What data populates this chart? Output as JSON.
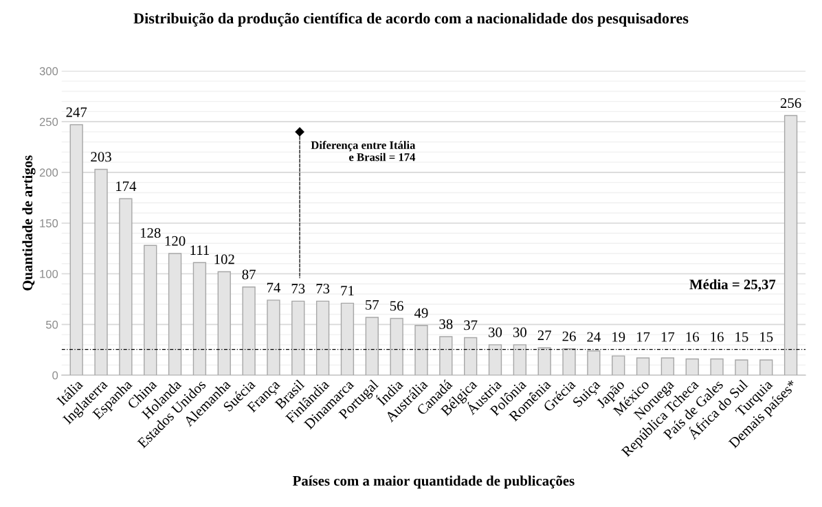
{
  "chart_data": {
    "type": "bar",
    "title": "Distribuição da produção científica de acordo com a nacionalidade dos pesquisadores",
    "xlabel": "Países com a maior quantidade de publicações",
    "ylabel": "Quantidade de artigos",
    "categories": [
      "Itália",
      "Inglaterra",
      "Espanha",
      "China",
      "Holanda",
      "Estados Unidos",
      "Alemanha",
      "Suécia",
      "França",
      "Brasil",
      "Finlândia",
      "Dinamarca",
      "Portugal",
      "Índia",
      "Austrália",
      "Canadá",
      "Bélgica",
      "Áustria",
      "Polônia",
      "Romênia",
      "Grécia",
      "Suiça",
      "Japão",
      "México",
      "Noruega",
      "República Tcheca",
      "País de Gales",
      "África do Sul",
      "Turquia",
      "Demais países*"
    ],
    "values": [
      247,
      203,
      174,
      128,
      120,
      111,
      102,
      87,
      74,
      73,
      73,
      71,
      57,
      56,
      49,
      38,
      37,
      30,
      30,
      27,
      26,
      24,
      19,
      17,
      17,
      16,
      16,
      15,
      15,
      256
    ],
    "color": "#e4e4e4",
    "data_labels": true,
    "ylim": [
      0,
      300
    ],
    "yticks": [
      0,
      50,
      100,
      150,
      200,
      250,
      300
    ],
    "grid": "y",
    "ref_lines": [
      {
        "axis": "y",
        "value": 25.37,
        "label": "Média = 25,37",
        "line_style": "dashed",
        "color": "#000000"
      }
    ],
    "annotations": [
      "Diferença entre Itália\ne Brasil = 174"
    ]
  }
}
